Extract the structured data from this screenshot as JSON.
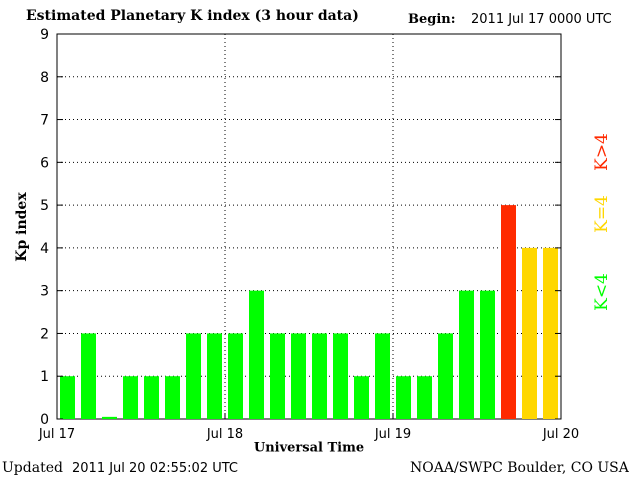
{
  "header": {
    "title": "Estimated Planetary K index (3 hour data)",
    "begin_label": "Begin:",
    "begin_value": "2011 Jul 17 0000 UTC"
  },
  "footer": {
    "updated_label": "Updated",
    "updated_value": "2011 Jul 20 02:55:02 UTC",
    "source": "NOAA/SWPC Boulder, CO USA"
  },
  "legend": {
    "high": "K>4",
    "equal": "K=4",
    "low": "K<4"
  },
  "colors": {
    "low": "#00ff00",
    "equal": "#ffd700",
    "high": "#ff2a00"
  },
  "chart_data": {
    "type": "bar",
    "ylabel": "Kp index",
    "xlabel": "Universal Time",
    "ylim": [
      0,
      9
    ],
    "yticks": [
      "0",
      "1",
      "2",
      "3",
      "4",
      "5",
      "6",
      "7",
      "8",
      "9"
    ],
    "xticks": [
      "Jul 17",
      "Jul 18",
      "Jul 19",
      "Jul 20"
    ],
    "grid": true,
    "values": [
      1,
      2,
      0.05,
      1,
      1,
      1,
      2,
      2,
      2,
      3,
      2,
      2,
      2,
      2,
      1,
      2,
      1,
      1,
      2,
      3,
      3,
      5,
      4,
      4
    ]
  }
}
